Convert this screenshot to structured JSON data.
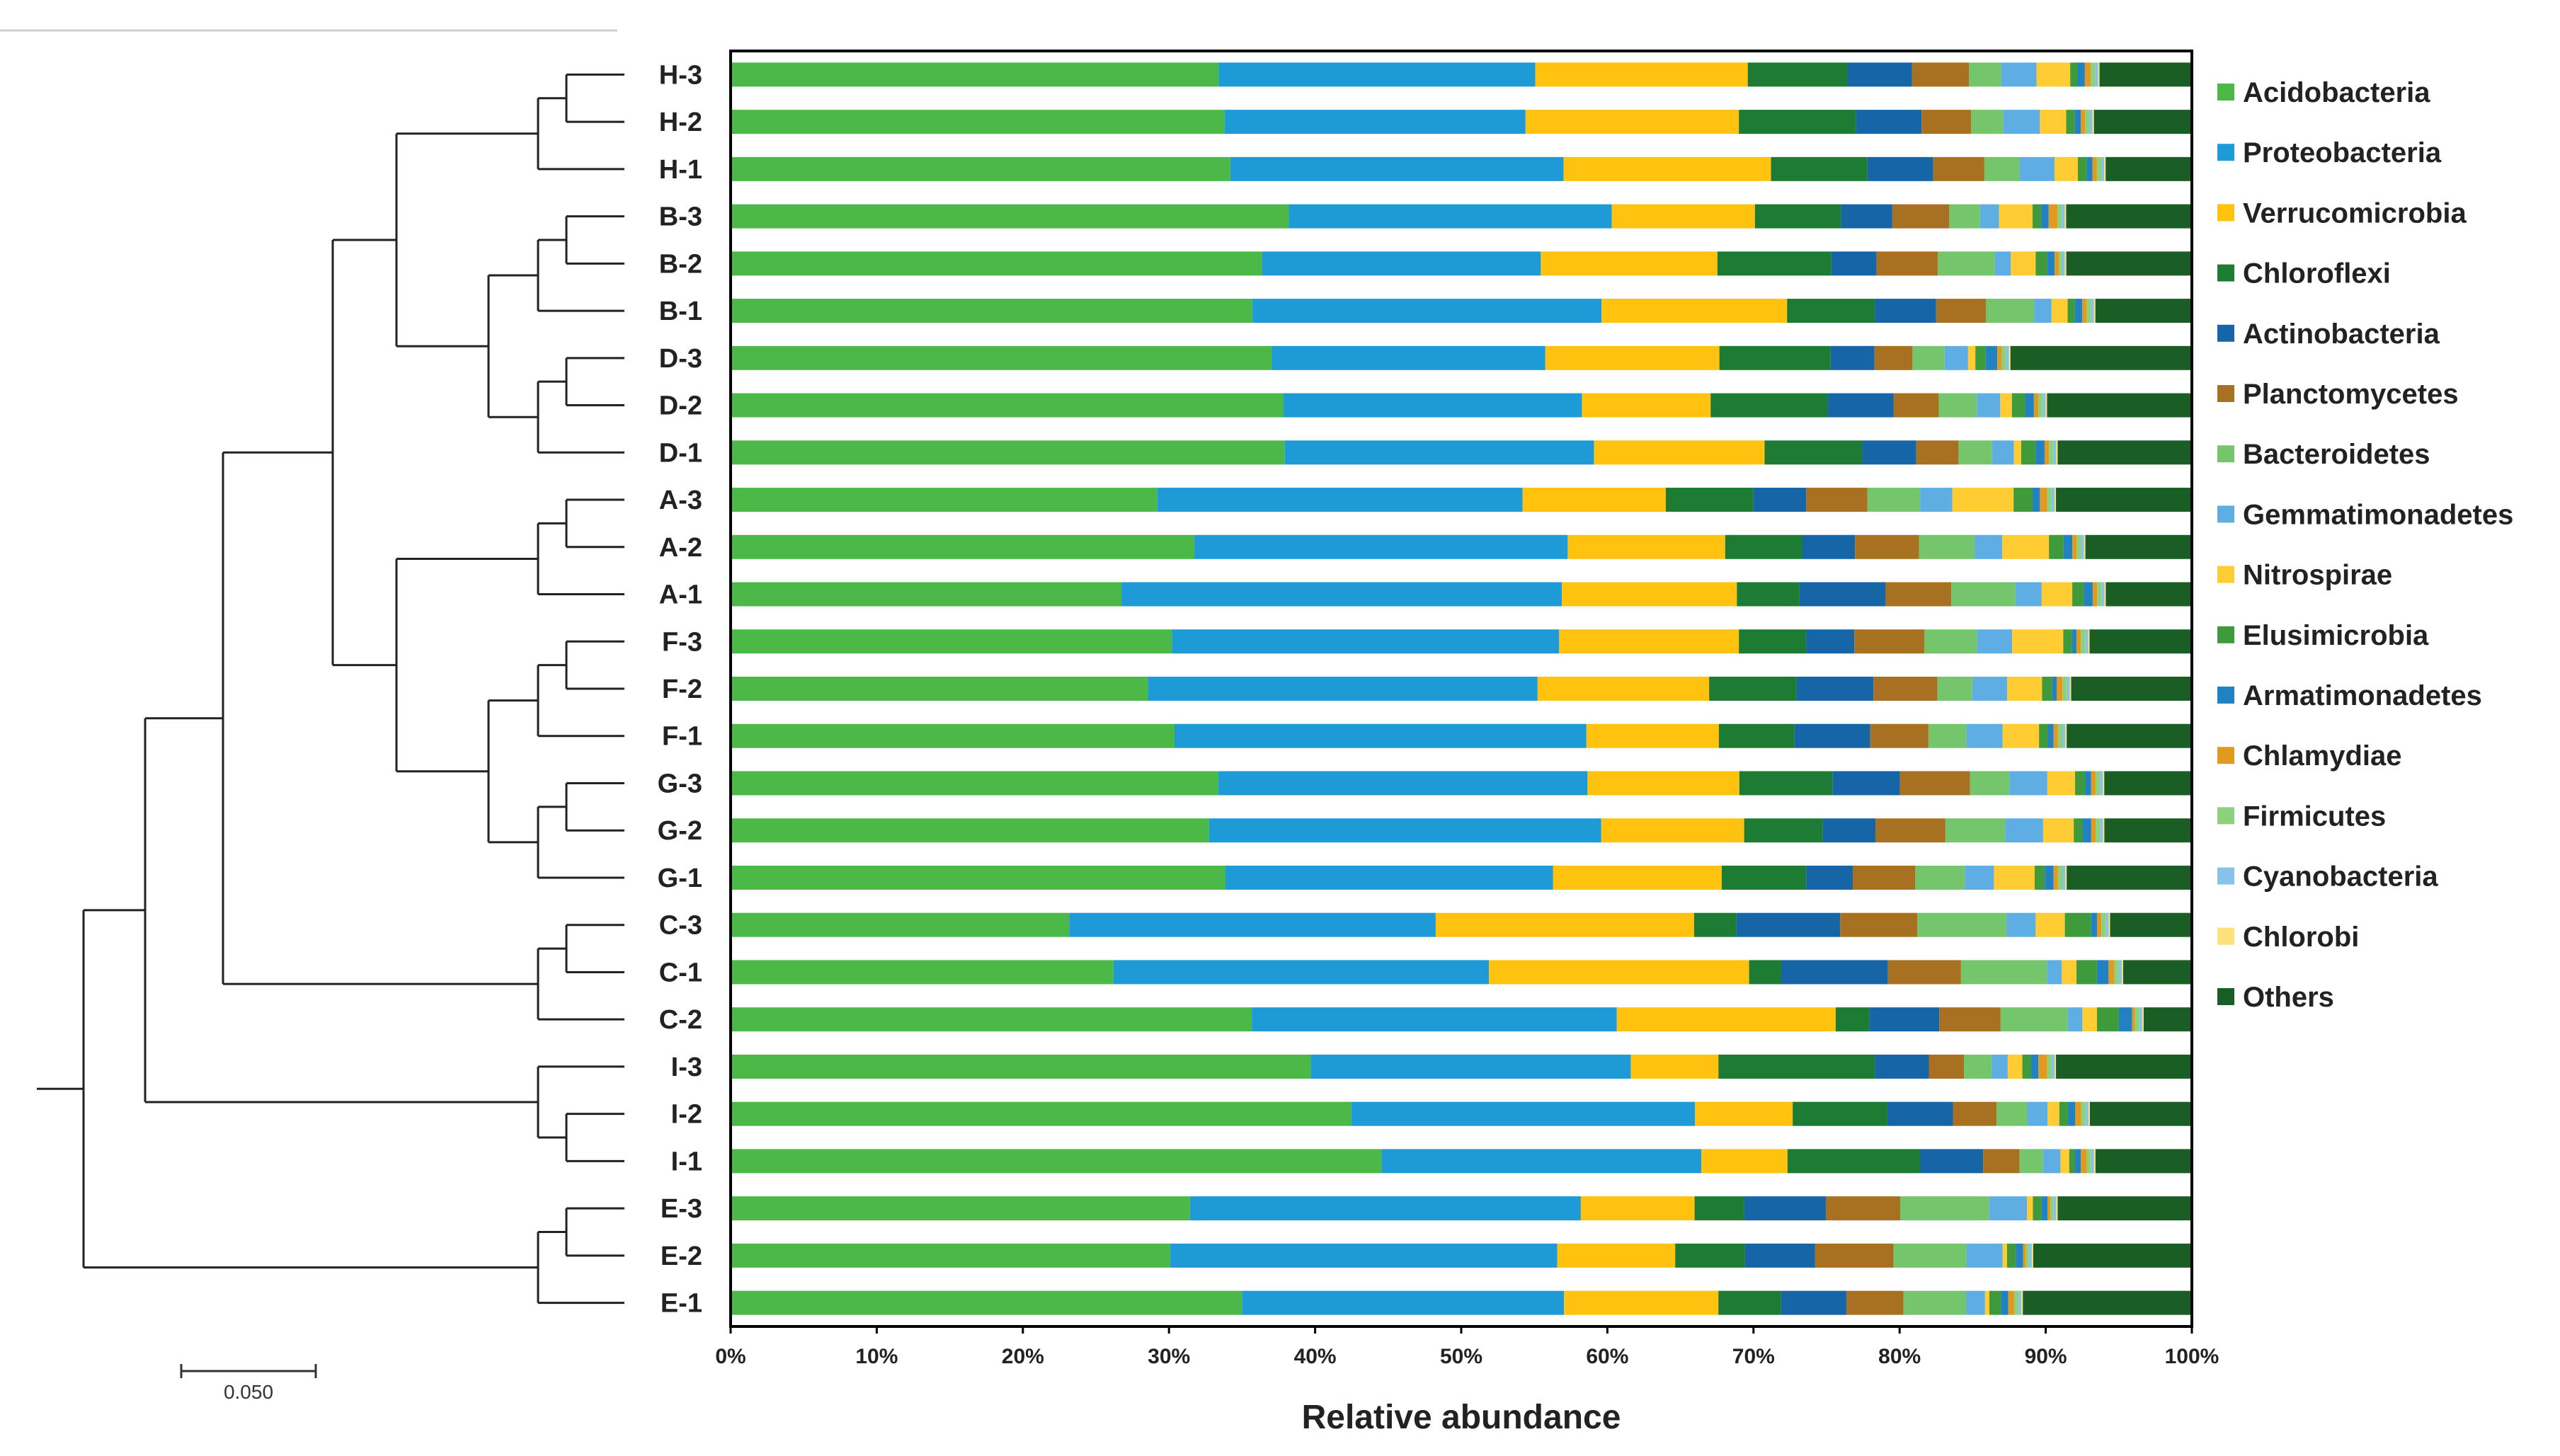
{
  "chart_data": {
    "type": "bar",
    "orientation": "horizontal",
    "stacked": "percent",
    "title": "",
    "xlabel": "Relative abundance",
    "ylabel": "",
    "xlim": [
      0,
      100
    ],
    "xticks": [
      "0%",
      "10%",
      "20%",
      "30%",
      "40%",
      "50%",
      "60%",
      "70%",
      "80%",
      "90%",
      "100%"
    ],
    "legend_position": "right",
    "categories": [
      "H-3",
      "H-2",
      "H-1",
      "B-3",
      "B-2",
      "B-1",
      "D-3",
      "D-2",
      "D-1",
      "A-3",
      "A-2",
      "A-1",
      "F-3",
      "F-2",
      "F-1",
      "G-3",
      "G-2",
      "G-1",
      "C-3",
      "C-1",
      "C-2",
      "I-3",
      "I-2",
      "I-1",
      "E-3",
      "E-2",
      "E-1"
    ],
    "series": [
      {
        "name": "Acidobacteria",
        "color": "#4CB848",
        "values": [
          33.3,
          33.8,
          34.2,
          38.2,
          36.4,
          35.7,
          37.0,
          37.8,
          38.0,
          29.2,
          31.8,
          26.8,
          30.2,
          28.7,
          30.5,
          33.4,
          32.8,
          34.0,
          23.2,
          26.2,
          35.7,
          39.7,
          42.6,
          44.6,
          31.5,
          30.2,
          35.1
        ]
      },
      {
        "name": "Proteobacteria",
        "color": "#1E9AD6",
        "values": [
          21.6,
          20.6,
          22.8,
          22.1,
          19.1,
          23.9,
          18.7,
          20.4,
          21.2,
          25.0,
          25.6,
          30.2,
          26.5,
          26.8,
          28.3,
          25.3,
          26.9,
          22.5,
          25.1,
          25.7,
          25.0,
          21.9,
          23.6,
          21.9,
          26.8,
          26.6,
          22.1
        ]
      },
      {
        "name": "Verrucomicrobia",
        "color": "#FFC20E",
        "values": [
          14.5,
          14.6,
          14.2,
          9.8,
          12.1,
          12.7,
          11.9,
          8.8,
          11.7,
          9.8,
          10.8,
          12.0,
          12.3,
          11.8,
          9.1,
          10.4,
          9.8,
          11.6,
          17.7,
          17.8,
          15.0,
          6.0,
          6.7,
          5.9,
          7.8,
          8.1,
          10.6
        ]
      },
      {
        "name": "Chloroflexi",
        "color": "#1E7B34",
        "values": [
          6.8,
          8.0,
          6.6,
          5.9,
          7.8,
          6.0,
          7.6,
          8.0,
          6.7,
          6.0,
          5.3,
          4.3,
          4.6,
          6.0,
          5.2,
          6.4,
          5.4,
          5.8,
          2.9,
          2.2,
          2.3,
          10.7,
          6.5,
          9.1,
          3.4,
          4.8,
          4.3
        ]
      },
      {
        "name": "Actinobacteria",
        "color": "#1565A7",
        "values": [
          4.4,
          4.5,
          4.5,
          3.5,
          3.1,
          4.2,
          3.0,
          4.5,
          3.7,
          3.6,
          3.6,
          5.9,
          3.3,
          5.3,
          5.2,
          4.6,
          3.6,
          3.2,
          7.1,
          7.3,
          4.8,
          3.7,
          4.5,
          4.3,
          5.6,
          4.8,
          4.5
        ]
      },
      {
        "name": "Planctomycetes",
        "color": "#A87121",
        "values": [
          3.9,
          3.4,
          3.5,
          3.9,
          4.2,
          3.4,
          2.6,
          3.1,
          2.9,
          4.2,
          4.4,
          4.5,
          4.8,
          4.4,
          4.0,
          4.8,
          4.8,
          4.3,
          5.3,
          5.0,
          4.2,
          2.4,
          3.0,
          2.5,
          5.1,
          5.4,
          3.9
        ]
      },
      {
        "name": "Bacteroidetes",
        "color": "#74C56B",
        "values": [
          2.2,
          2.2,
          2.4,
          2.1,
          3.9,
          3.3,
          2.2,
          2.6,
          2.3,
          3.6,
          3.8,
          4.4,
          3.6,
          2.4,
          2.6,
          2.7,
          4.1,
          3.4,
          6.1,
          5.9,
          4.6,
          1.9,
          2.1,
          1.6,
          6.1,
          5.0,
          4.3
        ]
      },
      {
        "name": "Gemmatimonadetes",
        "color": "#5FAEE3",
        "values": [
          2.4,
          2.5,
          2.4,
          1.3,
          1.1,
          1.2,
          1.6,
          1.6,
          1.5,
          2.2,
          1.9,
          1.8,
          2.4,
          2.4,
          2.5,
          2.6,
          2.6,
          2.0,
          2.0,
          1.0,
          1.0,
          1.1,
          1.4,
          1.2,
          2.6,
          2.5,
          1.3
        ]
      },
      {
        "name": "Nitrospirae",
        "color": "#FFCC33",
        "values": [
          2.3,
          1.8,
          1.6,
          2.3,
          1.7,
          1.1,
          0.5,
          0.8,
          0.5,
          4.2,
          3.2,
          2.1,
          3.5,
          2.4,
          2.5,
          1.9,
          2.1,
          2.8,
          2.0,
          1.0,
          1.0,
          1.0,
          0.8,
          0.6,
          0.4,
          0.3,
          0.3
        ]
      },
      {
        "name": "Elusimicrobia",
        "color": "#3F9A3B",
        "values": [
          0.5,
          0.6,
          0.6,
          0.6,
          0.8,
          0.5,
          0.7,
          0.9,
          1.0,
          1.3,
          1.0,
          0.8,
          0.6,
          0.7,
          0.6,
          0.7,
          0.6,
          0.7,
          1.8,
          1.4,
          1.5,
          0.6,
          0.6,
          0.4,
          0.6,
          0.6,
          0.8
        ]
      },
      {
        "name": "Armatimonadetes",
        "color": "#2281C2",
        "values": [
          0.5,
          0.4,
          0.4,
          0.5,
          0.5,
          0.5,
          0.8,
          0.6,
          0.6,
          0.5,
          0.6,
          0.6,
          0.3,
          0.3,
          0.4,
          0.4,
          0.6,
          0.6,
          0.4,
          0.8,
          0.9,
          0.5,
          0.5,
          0.4,
          0.4,
          0.5,
          0.5
        ]
      },
      {
        "name": "Chlamydiae",
        "color": "#E09B1E",
        "values": [
          0.4,
          0.3,
          0.3,
          0.6,
          0.3,
          0.3,
          0.3,
          0.3,
          0.3,
          0.5,
          0.3,
          0.3,
          0.3,
          0.4,
          0.3,
          0.3,
          0.3,
          0.3,
          0.3,
          0.4,
          0.2,
          0.6,
          0.4,
          0.4,
          0.2,
          0.2,
          0.4
        ]
      },
      {
        "name": "Firmicutes",
        "color": "#8DD17F",
        "values": [
          0.3,
          0.3,
          0.3,
          0.3,
          0.2,
          0.3,
          0.3,
          0.3,
          0.3,
          0.3,
          0.3,
          0.3,
          0.3,
          0.3,
          0.3,
          0.3,
          0.3,
          0.3,
          0.3,
          0.3,
          0.3,
          0.3,
          0.3,
          0.3,
          0.2,
          0.2,
          0.3
        ]
      },
      {
        "name": "Cyanobacteria",
        "color": "#86C3E8",
        "values": [
          0.2,
          0.2,
          0.2,
          0.2,
          0.2,
          0.2,
          0.2,
          0.2,
          0.2,
          0.2,
          0.2,
          0.2,
          0.2,
          0.2,
          0.2,
          0.2,
          0.2,
          0.2,
          0.2,
          0.2,
          0.2,
          0.2,
          0.2,
          0.2,
          0.2,
          0.2,
          0.2
        ]
      },
      {
        "name": "Chlorobi",
        "color": "#FFE07A",
        "values": [
          0.1,
          0.1,
          0.1,
          0.1,
          0.1,
          0.1,
          0.1,
          0.1,
          0.1,
          0.1,
          0.1,
          0.1,
          0.1,
          0.1,
          0.1,
          0.1,
          0.1,
          0.1,
          0.1,
          0.1,
          0.1,
          0.1,
          0.1,
          0.1,
          0.1,
          0.1,
          0.1
        ]
      },
      {
        "name": "Others",
        "color": "#1A5E25",
        "values": [
          6.3,
          6.7,
          5.9,
          8.6,
          8.6,
          6.6,
          12.4,
          9.9,
          9.2,
          9.3,
          7.3,
          5.9,
          7.0,
          8.3,
          8.6,
          6.0,
          6.0,
          8.6,
          5.6,
          4.7,
          3.3,
          9.3,
          7.0,
          6.6,
          9.2,
          10.9,
          11.6
        ]
      }
    ],
    "scale_bar": {
      "value": 0.05,
      "label": "0.050"
    },
    "dendrogram": {
      "type": "hierarchical clustering",
      "tree": [
        [
          [
            [
              [
                [
                  "H-3",
                  "H-2"
                ],
                "H-1"
              ],
              [
                [
                  [
                    "B-3",
                    "B-2"
                  ],
                  "B-1"
                ],
                [
                  [
                    "D-3",
                    "D-2"
                  ],
                  "D-1"
                ]
              ]
            ],
            [
              [
                [
                  "A-3",
                  "A-2"
                ],
                "A-1"
              ],
              [
                [
                  [
                    "F-3",
                    "F-2"
                  ],
                  "F-1"
                ],
                [
                  [
                    "G-3",
                    "G-2"
                  ],
                  "G-1"
                ]
              ]
            ]
          ],
          [
            [
              "C-3",
              "C-1"
            ],
            "C-2"
          ]
        ],
        [
          "I-3",
          [
            "I-2",
            "I-1"
          ]
        ]
      ],
      "outgroup": [
        [
          "E-3",
          "E-2"
        ],
        "E-1"
      ]
    }
  }
}
